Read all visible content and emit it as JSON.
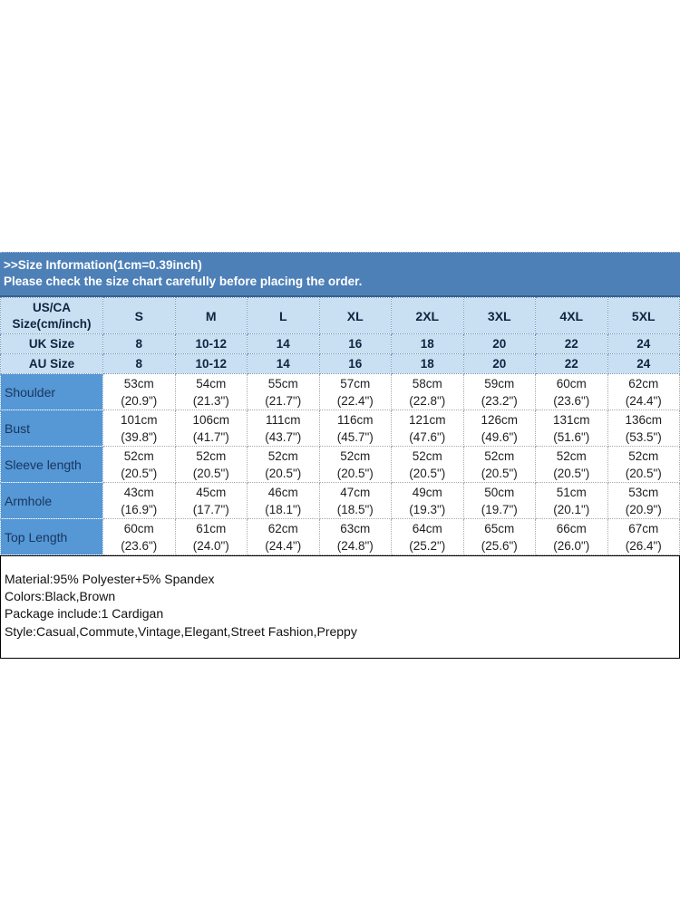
{
  "banner": {
    "line1": ">>Size Information(1cm=0.39inch)",
    "line2": "Please check the size chart carefully before placing the order."
  },
  "table": {
    "corner_header_line1": "US/CA",
    "corner_header_line2": "Size(cm/inch)",
    "sizes": [
      "S",
      "M",
      "L",
      "XL",
      "2XL",
      "3XL",
      "4XL",
      "5XL"
    ],
    "uk_row": {
      "label": "UK Size",
      "values": [
        "8",
        "10-12",
        "14",
        "16",
        "18",
        "20",
        "22",
        "24"
      ]
    },
    "au_row": {
      "label": "AU Size",
      "values": [
        "8",
        "10-12",
        "14",
        "16",
        "18",
        "20",
        "22",
        "24"
      ]
    },
    "measurement_rows": [
      {
        "label": "Shoulder",
        "cm": [
          "53cm",
          "54cm",
          "55cm",
          "57cm",
          "58cm",
          "59cm",
          "60cm",
          "62cm"
        ],
        "inch": [
          "(20.9\")",
          "(21.3\")",
          "(21.7\")",
          "(22.4\")",
          "(22.8\")",
          "(23.2\")",
          "(23.6\")",
          "(24.4\")"
        ]
      },
      {
        "label": "Bust",
        "cm": [
          "101cm",
          "106cm",
          "111cm",
          "116cm",
          "121cm",
          "126cm",
          "131cm",
          "136cm"
        ],
        "inch": [
          "(39.8\")",
          "(41.7\")",
          "(43.7\")",
          "(45.7\")",
          "(47.6\")",
          "(49.6\")",
          "(51.6\")",
          "(53.5\")"
        ]
      },
      {
        "label": "Sleeve length",
        "cm": [
          "52cm",
          "52cm",
          "52cm",
          "52cm",
          "52cm",
          "52cm",
          "52cm",
          "52cm"
        ],
        "inch": [
          "(20.5\")",
          "(20.5\")",
          "(20.5\")",
          "(20.5\")",
          "(20.5\")",
          "(20.5\")",
          "(20.5\")",
          "(20.5\")"
        ]
      },
      {
        "label": "Armhole",
        "cm": [
          "43cm",
          "45cm",
          "46cm",
          "47cm",
          "49cm",
          "50cm",
          "51cm",
          "53cm"
        ],
        "inch": [
          "(16.9\")",
          "(17.7\")",
          "(18.1\")",
          "(18.5\")",
          "(19.3\")",
          "(19.7\")",
          "(20.1\")",
          "(20.9\")"
        ]
      },
      {
        "label": "Top Length",
        "cm": [
          "60cm",
          "61cm",
          "62cm",
          "63cm",
          "64cm",
          "65cm",
          "66cm",
          "67cm"
        ],
        "inch": [
          "(23.6\")",
          "(24.0\")",
          "(24.4\")",
          "(24.8\")",
          "(25.2\")",
          "(25.6\")",
          "(26.0\")",
          "(26.4\")"
        ]
      }
    ]
  },
  "details": {
    "lines": [
      "Material:95% Polyester+5% Spandex",
      "Colors:Black,Brown",
      "Package include:1 Cardigan",
      "Style:Casual,Commute,Vintage,Elegant,Street Fashion,Preppy"
    ]
  },
  "colors": {
    "banner_blue": "#4e80b8",
    "header_light_blue": "#c9dff2",
    "row_label_blue": "#5697d5"
  }
}
